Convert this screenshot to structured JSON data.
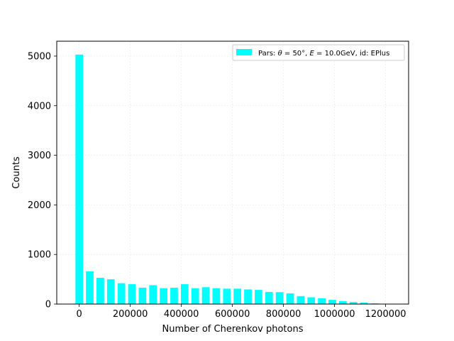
{
  "chart_data": {
    "type": "bar",
    "xlabel": "Number of Cherenkov photons",
    "ylabel": "Counts",
    "xlim": [
      -88000,
      1290000
    ],
    "ylim": [
      0,
      5300
    ],
    "x_ticks": [
      0,
      200000,
      400000,
      600000,
      800000,
      1000000,
      1200000
    ],
    "x_tick_labels": [
      "0",
      "200000",
      "400000",
      "600000",
      "800000",
      "1000000",
      "1200000"
    ],
    "y_ticks": [
      0,
      1000,
      2000,
      3000,
      4000,
      5000
    ],
    "y_tick_labels": [
      "0",
      "1000",
      "2000",
      "3000",
      "4000",
      "5000"
    ],
    "grid": true,
    "bar_color": "#00ffff",
    "bin_width": 41300,
    "bar_width_fraction": 0.72,
    "series": [
      {
        "name": "Pars: θ = 50°, E = 10.0GeV, id: EPlus",
        "x": [
          0,
          41300,
          82600,
          123900,
          165200,
          206500,
          247800,
          289100,
          330400,
          371700,
          413000,
          454300,
          495600,
          536900,
          578200,
          619500,
          660800,
          702100,
          743400,
          784700,
          826000,
          867300,
          908600,
          949900,
          991200,
          1032500,
          1073800,
          1115100,
          1156400,
          1197700
        ],
        "values": [
          5030,
          660,
          530,
          500,
          420,
          400,
          330,
          380,
          320,
          330,
          400,
          320,
          340,
          320,
          310,
          310,
          295,
          285,
          245,
          240,
          215,
          160,
          135,
          115,
          85,
          60,
          40,
          30,
          15,
          5
        ]
      }
    ],
    "legend": {
      "position": "top-right",
      "label_prefix": "Pars: ",
      "label_theta": "θ",
      "label_eq1": " = 50°, ",
      "label_E": "E",
      "label_eq2": " = 10.0GeV, id: EPlus"
    }
  }
}
